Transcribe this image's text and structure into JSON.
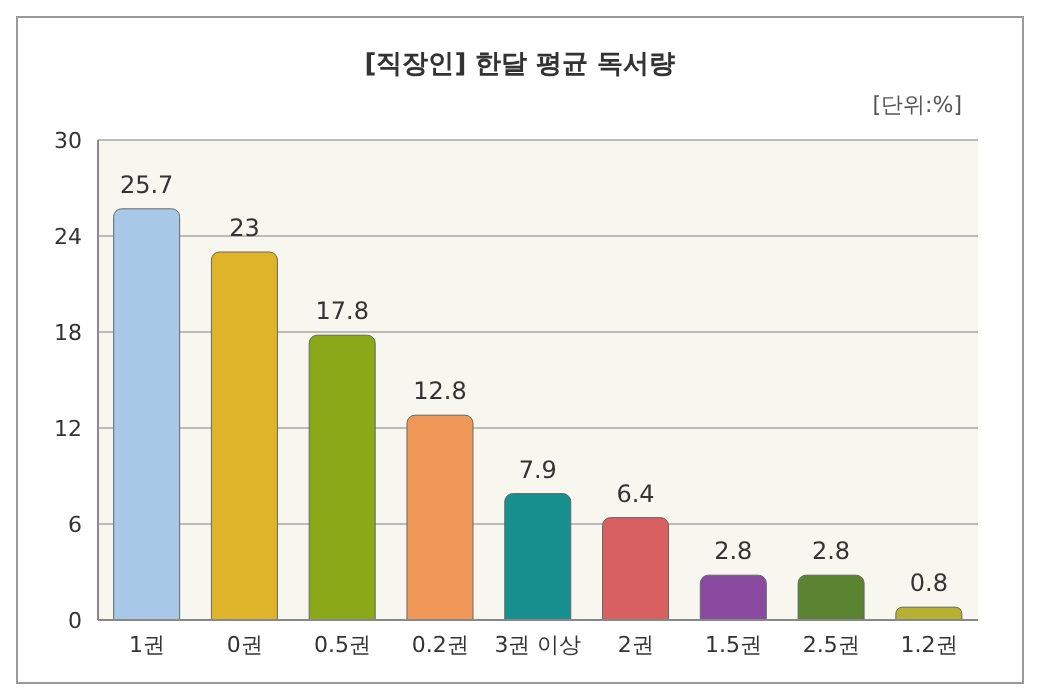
{
  "chart_data": {
    "type": "bar",
    "title": "[직장인] 한달 평균 독서량",
    "subtitle": "[단위:%]",
    "categories": [
      "1권",
      "0권",
      "0.5권",
      "0.2권",
      "3권 이상",
      "2권",
      "1.5권",
      "2.5권",
      "1.2권"
    ],
    "values": [
      25.7,
      23,
      17.8,
      12.8,
      7.9,
      6.4,
      2.8,
      2.8,
      0.8
    ],
    "colors": [
      "#a8c8e8",
      "#e0b428",
      "#8aa818",
      "#f09858",
      "#189090",
      "#d86060",
      "#8a4aa0",
      "#5a8430",
      "#b8b030"
    ],
    "ylim": [
      0,
      30
    ],
    "yticks": [
      0,
      6,
      12,
      18,
      24,
      30
    ],
    "grid": "y",
    "data_labels": true
  }
}
